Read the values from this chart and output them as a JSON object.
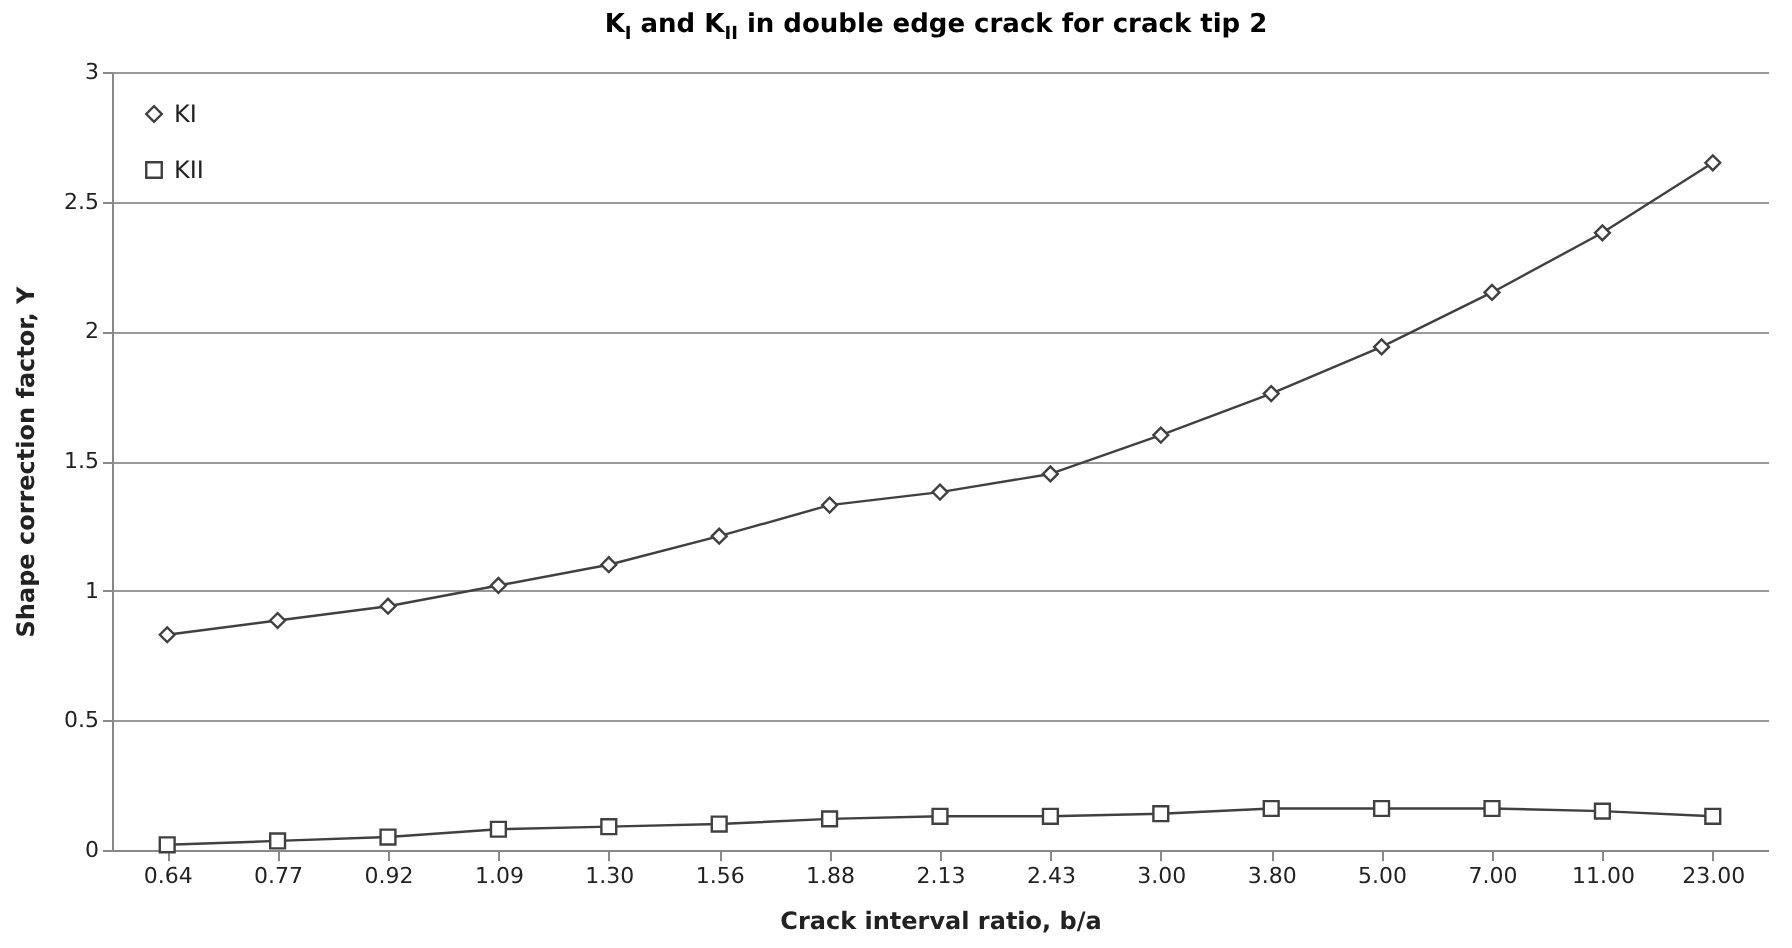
{
  "chart_data": {
    "type": "line",
    "title": "K$_{I}$ and K$_{II}$ in double edge crack for crack tip 2",
    "xlabel": "Crack interval ratio, b/a",
    "ylabel": "Shape correction factor, Y",
    "categories": [
      "0.64",
      "0.77",
      "0.92",
      "1.09",
      "1.30",
      "1.56",
      "1.88",
      "2.13",
      "2.43",
      "3.00",
      "3.80",
      "5.00",
      "7.00",
      "11.00",
      "23.00"
    ],
    "series": [
      {
        "name": "KI",
        "color": "#404040",
        "marker": "diamond",
        "values": [
          0.83,
          0.885,
          0.94,
          1.02,
          1.1,
          1.21,
          1.33,
          1.38,
          1.45,
          1.6,
          1.76,
          1.94,
          2.15,
          2.38,
          2.65
        ]
      },
      {
        "name": "KII",
        "color": "#404040",
        "marker": "square",
        "values": [
          0.02,
          0.035,
          0.05,
          0.08,
          0.09,
          0.1,
          0.12,
          0.13,
          0.13,
          0.14,
          0.16,
          0.16,
          0.16,
          0.15,
          0.13
        ]
      }
    ],
    "ylim": [
      0,
      3
    ],
    "yticks": [
      0,
      0.5,
      1,
      1.5,
      2,
      2.5,
      3
    ],
    "grid": "y",
    "legend": "top left",
    "line_style": "solid"
  }
}
